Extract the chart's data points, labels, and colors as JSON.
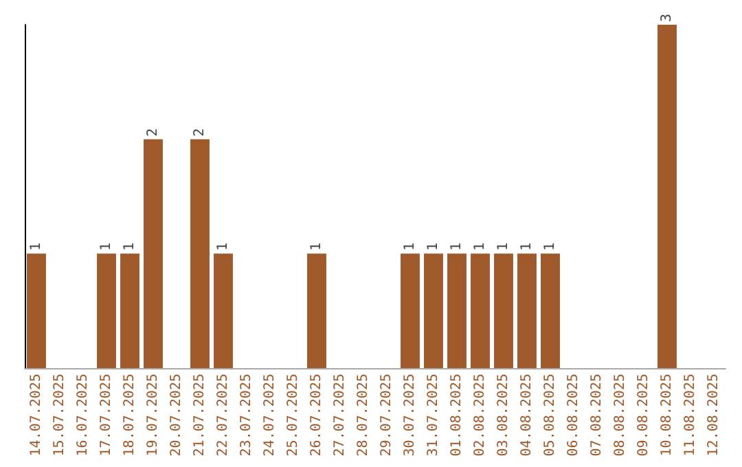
{
  "chart_data": {
    "type": "bar",
    "categories": [
      "14.07.2025",
      "15.07.2025",
      "16.07.2025",
      "17.07.2025",
      "18.07.2025",
      "19.07.2025",
      "20.07.2025",
      "21.07.2025",
      "22.07.2025",
      "23.07.2025",
      "24.07.2025",
      "25.07.2025",
      "26.07.2025",
      "27.07.2025",
      "28.07.2025",
      "29.07.2025",
      "30.07.2025",
      "31.07.2025",
      "01.08.2025",
      "02.08.2025",
      "03.08.2025",
      "04.08.2025",
      "05.08.2025",
      "06.08.2025",
      "07.08.2025",
      "08.08.2025",
      "09.08.2025",
      "10.08.2025",
      "11.08.2025",
      "12.08.2025"
    ],
    "values": [
      1,
      null,
      null,
      1,
      1,
      2,
      null,
      2,
      1,
      null,
      null,
      null,
      1,
      null,
      null,
      null,
      1,
      1,
      1,
      1,
      1,
      1,
      1,
      null,
      null,
      null,
      null,
      3,
      null,
      null
    ],
    "color": "#a0592a",
    "data_labels": true,
    "tick_labels": "x"
  }
}
